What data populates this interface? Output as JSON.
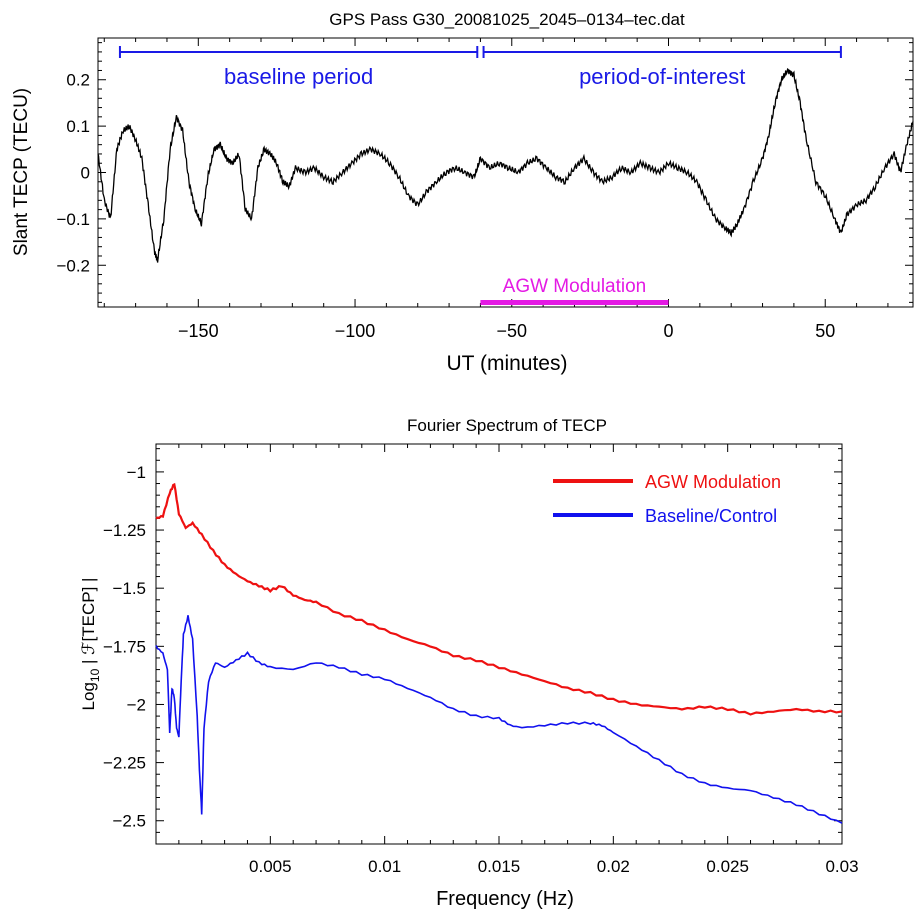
{
  "chart_data": [
    {
      "type": "line",
      "title": "GPS Pass G30_20081025_2045–0134–tec.dat",
      "xlabel": "UT (minutes)",
      "ylabel": "Slant TECP (TECU)",
      "xlim": [
        -182,
        78
      ],
      "ylim": [
        -0.29,
        0.29
      ],
      "xticks": [
        -150,
        -100,
        -50,
        0,
        50
      ],
      "xtick_labels": [
        "−150",
        "−100",
        "−50",
        "0",
        "50"
      ],
      "yticks": [
        -0.2,
        -0.1,
        0,
        0.1,
        0.2
      ],
      "ytick_labels": [
        "−0.2",
        "−0.1",
        "0",
        "0.1",
        "0.2"
      ],
      "grid": false,
      "series": [
        {
          "color": "#000000",
          "points": [
            [
              -182,
              0.04
            ],
            [
              -180,
              -0.06
            ],
            [
              -178,
              -0.1
            ],
            [
              -176,
              0.05
            ],
            [
              -174,
              0.09
            ],
            [
              -172,
              0.1
            ],
            [
              -170,
              0.07
            ],
            [
              -168,
              0.03
            ],
            [
              -166,
              -0.07
            ],
            [
              -164,
              -0.17
            ],
            [
              -163,
              -0.19
            ],
            [
              -161,
              -0.1
            ],
            [
              -159,
              0.05
            ],
            [
              -157,
              0.12
            ],
            [
              -155,
              0.09
            ],
            [
              -153,
              -0.02
            ],
            [
              -151,
              -0.08
            ],
            [
              -149,
              -0.11
            ],
            [
              -147,
              -0.01
            ],
            [
              -145,
              0.05
            ],
            [
              -143,
              0.06
            ],
            [
              -141,
              0.03
            ],
            [
              -139,
              0.02
            ],
            [
              -137,
              0.04
            ],
            [
              -135,
              -0.08
            ],
            [
              -133,
              -0.1
            ],
            [
              -131,
              0.01
            ],
            [
              -129,
              0.05
            ],
            [
              -127,
              0.04
            ],
            [
              -125,
              0.02
            ],
            [
              -123,
              -0.02
            ],
            [
              -121,
              -0.03
            ],
            [
              -119,
              0.01
            ],
            [
              -116,
              0.0
            ],
            [
              -113,
              0.01
            ],
            [
              -110,
              -0.01
            ],
            [
              -107,
              -0.02
            ],
            [
              -104,
              0.0
            ],
            [
              -101,
              0.02
            ],
            [
              -98,
              0.04
            ],
            [
              -95,
              0.05
            ],
            [
              -92,
              0.04
            ],
            [
              -89,
              0.02
            ],
            [
              -86,
              -0.01
            ],
            [
              -83,
              -0.05
            ],
            [
              -80,
              -0.07
            ],
            [
              -77,
              -0.04
            ],
            [
              -74,
              -0.02
            ],
            [
              -71,
              0.0
            ],
            [
              -68,
              0.01
            ],
            [
              -65,
              0.0
            ],
            [
              -62,
              -0.01
            ],
            [
              -60,
              0.03
            ],
            [
              -57,
              0.01
            ],
            [
              -54,
              0.02
            ],
            [
              -51,
              0.01
            ],
            [
              -48,
              0.0
            ],
            [
              -45,
              0.02
            ],
            [
              -42,
              0.03
            ],
            [
              -39,
              0.01
            ],
            [
              -36,
              -0.01
            ],
            [
              -33,
              -0.02
            ],
            [
              -30,
              0.01
            ],
            [
              -27,
              0.03
            ],
            [
              -24,
              0.0
            ],
            [
              -21,
              -0.02
            ],
            [
              -18,
              -0.01
            ],
            [
              -15,
              0.01
            ],
            [
              -12,
              0.0
            ],
            [
              -9,
              0.02
            ],
            [
              -6,
              0.01
            ],
            [
              -3,
              0.0
            ],
            [
              0,
              0.02
            ],
            [
              3,
              0.01
            ],
            [
              6,
              0.0
            ],
            [
              9,
              -0.02
            ],
            [
              12,
              -0.06
            ],
            [
              15,
              -0.1
            ],
            [
              18,
              -0.12
            ],
            [
              20,
              -0.13
            ],
            [
              22,
              -0.11
            ],
            [
              24,
              -0.08
            ],
            [
              27,
              -0.02
            ],
            [
              30,
              0.03
            ],
            [
              32,
              0.08
            ],
            [
              34,
              0.15
            ],
            [
              36,
              0.2
            ],
            [
              38,
              0.22
            ],
            [
              40,
              0.21
            ],
            [
              42,
              0.15
            ],
            [
              44,
              0.07
            ],
            [
              47,
              -0.02
            ],
            [
              50,
              -0.05
            ],
            [
              53,
              -0.1
            ],
            [
              55,
              -0.13
            ],
            [
              57,
              -0.09
            ],
            [
              60,
              -0.07
            ],
            [
              63,
              -0.06
            ],
            [
              66,
              -0.03
            ],
            [
              69,
              0.01
            ],
            [
              72,
              0.04
            ],
            [
              74,
              0.0
            ],
            [
              76,
              0.06
            ],
            [
              78,
              0.11
            ]
          ]
        }
      ],
      "annotations": [
        {
          "text": "baseline period",
          "x_range": [
            -175,
            -61
          ],
          "color": "#1a1ae6"
        },
        {
          "text": "period-of-interest",
          "x_range": [
            -59,
            55
          ],
          "color": "#1a1ae6"
        },
        {
          "text": "AGW Modulation",
          "x_range": [
            -60,
            0
          ],
          "color": "#e41ae4"
        }
      ]
    },
    {
      "type": "line",
      "title": "Fourier Spectrum of TECP",
      "xlabel": "Frequency (Hz)",
      "ylabel_main": "Log",
      "ylabel_sub": "10",
      "ylabel_rest": " | ℱ[TECP] |",
      "xlim": [
        0.0,
        0.03
      ],
      "ylim": [
        -2.6,
        -0.88
      ],
      "xticks": [
        0.005,
        0.01,
        0.015,
        0.02,
        0.025,
        0.03
      ],
      "xtick_labels": [
        "0.005",
        "0.01",
        "0.015",
        "0.02",
        "0.025",
        "0.03"
      ],
      "yticks": [
        -1,
        -1.25,
        -1.5,
        -1.75,
        -2,
        -2.25,
        -2.5
      ],
      "ytick_labels": [
        "−1",
        "−1.25",
        "−1.5",
        "−1.75",
        "−2",
        "−2.25",
        "−2.5"
      ],
      "grid": false,
      "legend_position": "top-right",
      "series": [
        {
          "name": "AGW Modulation",
          "color": "#ee1111",
          "points": [
            [
              0.0,
              -1.2
            ],
            [
              0.0003,
              -1.19
            ],
            [
              0.0006,
              -1.09
            ],
            [
              0.0008,
              -1.05
            ],
            [
              0.001,
              -1.18
            ],
            [
              0.0013,
              -1.24
            ],
            [
              0.0016,
              -1.22
            ],
            [
              0.002,
              -1.27
            ],
            [
              0.0025,
              -1.34
            ],
            [
              0.003,
              -1.4
            ],
            [
              0.0035,
              -1.44
            ],
            [
              0.004,
              -1.47
            ],
            [
              0.0045,
              -1.49
            ],
            [
              0.005,
              -1.51
            ],
            [
              0.0055,
              -1.49
            ],
            [
              0.006,
              -1.53
            ],
            [
              0.0065,
              -1.55
            ],
            [
              0.007,
              -1.56
            ],
            [
              0.008,
              -1.61
            ],
            [
              0.009,
              -1.64
            ],
            [
              0.01,
              -1.68
            ],
            [
              0.011,
              -1.72
            ],
            [
              0.012,
              -1.75
            ],
            [
              0.013,
              -1.79
            ],
            [
              0.014,
              -1.81
            ],
            [
              0.015,
              -1.84
            ],
            [
              0.016,
              -1.87
            ],
            [
              0.017,
              -1.9
            ],
            [
              0.018,
              -1.93
            ],
            [
              0.019,
              -1.95
            ],
            [
              0.02,
              -1.98
            ],
            [
              0.021,
              -2.0
            ],
            [
              0.022,
              -2.01
            ],
            [
              0.023,
              -2.02
            ],
            [
              0.024,
              -2.01
            ],
            [
              0.025,
              -2.02
            ],
            [
              0.026,
              -2.04
            ],
            [
              0.027,
              -2.03
            ],
            [
              0.028,
              -2.02
            ],
            [
              0.029,
              -2.03
            ],
            [
              0.03,
              -2.03
            ]
          ]
        },
        {
          "name": "Baseline/Control",
          "color": "#1111ee",
          "points": [
            [
              0.0,
              -1.75
            ],
            [
              0.0003,
              -1.78
            ],
            [
              0.0005,
              -1.85
            ],
            [
              0.0006,
              -2.12
            ],
            [
              0.0007,
              -1.93
            ],
            [
              0.0008,
              -1.97
            ],
            [
              0.0009,
              -2.1
            ],
            [
              0.001,
              -2.14
            ],
            [
              0.0011,
              -1.9
            ],
            [
              0.0012,
              -1.7
            ],
            [
              0.0014,
              -1.62
            ],
            [
              0.0016,
              -1.72
            ],
            [
              0.0018,
              -2.05
            ],
            [
              0.0019,
              -2.28
            ],
            [
              0.002,
              -2.47
            ],
            [
              0.0021,
              -2.1
            ],
            [
              0.0023,
              -1.9
            ],
            [
              0.0026,
              -1.82
            ],
            [
              0.003,
              -1.84
            ],
            [
              0.0035,
              -1.81
            ],
            [
              0.004,
              -1.78
            ],
            [
              0.0045,
              -1.82
            ],
            [
              0.005,
              -1.84
            ],
            [
              0.006,
              -1.85
            ],
            [
              0.007,
              -1.82
            ],
            [
              0.008,
              -1.84
            ],
            [
              0.009,
              -1.87
            ],
            [
              0.01,
              -1.89
            ],
            [
              0.011,
              -1.93
            ],
            [
              0.012,
              -1.97
            ],
            [
              0.013,
              -2.02
            ],
            [
              0.014,
              -2.05
            ],
            [
              0.015,
              -2.06
            ],
            [
              0.0155,
              -2.09
            ],
            [
              0.016,
              -2.1
            ],
            [
              0.017,
              -2.09
            ],
            [
              0.018,
              -2.08
            ],
            [
              0.019,
              -2.08
            ],
            [
              0.0195,
              -2.09
            ],
            [
              0.02,
              -2.12
            ],
            [
              0.021,
              -2.18
            ],
            [
              0.022,
              -2.24
            ],
            [
              0.023,
              -2.3
            ],
            [
              0.024,
              -2.34
            ],
            [
              0.025,
              -2.36
            ],
            [
              0.026,
              -2.37
            ],
            [
              0.027,
              -2.4
            ],
            [
              0.028,
              -2.43
            ],
            [
              0.029,
              -2.47
            ],
            [
              0.03,
              -2.51
            ]
          ]
        }
      ]
    }
  ]
}
